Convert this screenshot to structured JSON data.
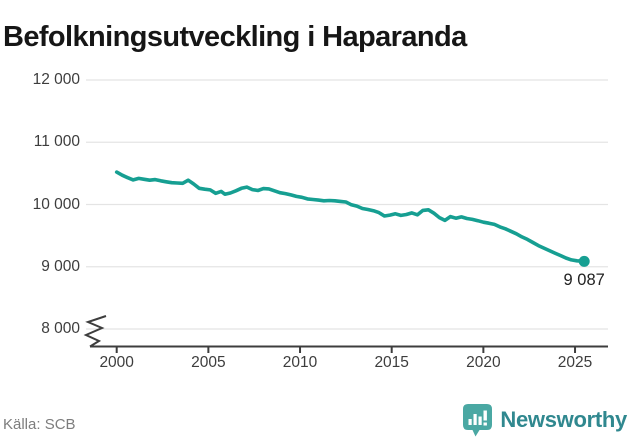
{
  "chart_data": {
    "type": "line",
    "title": "Befolkningsutveckling i Haparanda",
    "source": "Källa: SCB",
    "xlabel": "",
    "ylabel": "",
    "grid": true,
    "legend_position": "none",
    "axis_break_below": 8000,
    "ylim": [
      8000,
      12000
    ],
    "xlim": [
      1998.3,
      2026.8
    ],
    "xticks": [
      2000,
      2005,
      2010,
      2015,
      2020,
      2025
    ],
    "xtick_labels": [
      "2000",
      "2005",
      "2010",
      "2015",
      "2020",
      "2025"
    ],
    "ytick_values": [
      8000,
      9000,
      10000,
      11000,
      12000
    ],
    "ytick_labels": [
      "8 000",
      "9 000",
      "10 000",
      "11 000",
      "12 000"
    ],
    "line_color": "#169f92",
    "grid_color": "#e4e4e4",
    "axis_color": "#3d3d3d",
    "end_label": "9 087",
    "end_value": 9087,
    "series": [
      {
        "name": "Befolkning",
        "x": [
          2000.0,
          2000.3,
          2000.6,
          2000.9,
          2001.2,
          2001.5,
          2001.8,
          2002.1,
          2002.4,
          2002.7,
          2003.0,
          2003.3,
          2003.6,
          2003.9,
          2004.2,
          2004.5,
          2004.8,
          2005.1,
          2005.4,
          2005.7,
          2005.9,
          2006.2,
          2006.5,
          2006.8,
          2007.1,
          2007.4,
          2007.7,
          2008.0,
          2008.3,
          2008.6,
          2008.9,
          2009.2,
          2009.5,
          2009.8,
          2010.1,
          2010.4,
          2010.7,
          2011.0,
          2011.3,
          2011.6,
          2011.9,
          2012.2,
          2012.5,
          2012.8,
          2013.1,
          2013.4,
          2013.7,
          2014.0,
          2014.3,
          2014.6,
          2014.9,
          2015.2,
          2015.5,
          2015.8,
          2016.1,
          2016.4,
          2016.7,
          2017.0,
          2017.3,
          2017.6,
          2017.9,
          2018.2,
          2018.5,
          2018.8,
          2019.1,
          2019.4,
          2019.7,
          2020.0,
          2020.3,
          2020.6,
          2020.9,
          2021.2,
          2021.5,
          2021.8,
          2022.1,
          2022.4,
          2022.7,
          2023.0,
          2023.3,
          2023.6,
          2023.9,
          2024.2,
          2024.5,
          2024.8,
          2025.1,
          2025.5
        ],
        "y": [
          10520,
          10470,
          10430,
          10395,
          10420,
          10405,
          10390,
          10400,
          10380,
          10365,
          10350,
          10345,
          10340,
          10390,
          10330,
          10260,
          10245,
          10235,
          10180,
          10210,
          10165,
          10185,
          10220,
          10260,
          10280,
          10240,
          10225,
          10255,
          10250,
          10220,
          10190,
          10175,
          10155,
          10130,
          10115,
          10090,
          10080,
          10070,
          10060,
          10065,
          10060,
          10050,
          10040,
          9995,
          9975,
          9935,
          9920,
          9900,
          9870,
          9815,
          9830,
          9850,
          9825,
          9840,
          9865,
          9835,
          9905,
          9915,
          9860,
          9790,
          9745,
          9805,
          9780,
          9800,
          9775,
          9760,
          9740,
          9715,
          9700,
          9680,
          9640,
          9610,
          9570,
          9530,
          9480,
          9440,
          9390,
          9340,
          9300,
          9260,
          9220,
          9180,
          9140,
          9110,
          9095,
          9087
        ]
      }
    ]
  },
  "branding": {
    "name": "Newsworthy",
    "icon": "bar-chart-speech-bubble",
    "icon_color": "#4aa8a3",
    "text_color": "#30888f"
  }
}
